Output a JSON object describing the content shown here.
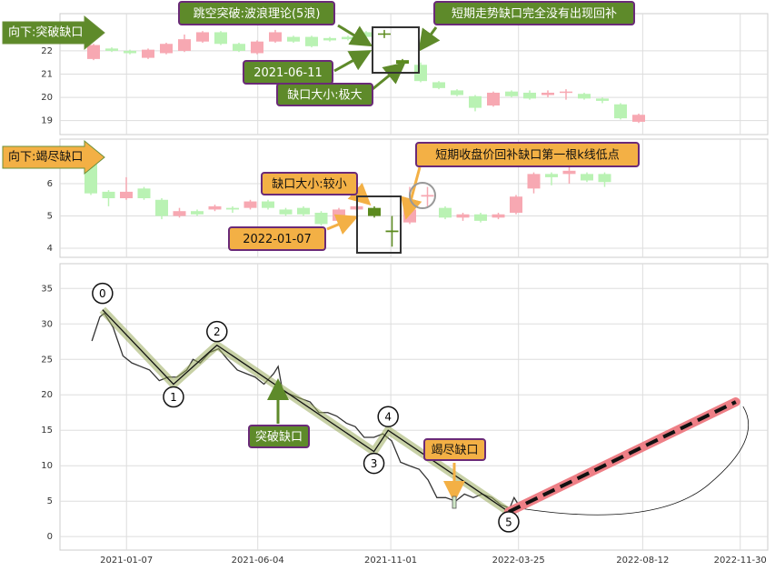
{
  "chart_data": [
    {
      "type": "candlestick",
      "up_color": "#f7a8b2",
      "down_color": "#b9f2b3",
      "highlight": [
        16,
        17
      ],
      "highlight_color": "#5b8a1e",
      "open": [
        21.65,
        22.1,
        22.0,
        21.7,
        21.9,
        22.0,
        22.4,
        22.8,
        22.3,
        21.9,
        22.4,
        22.6,
        22.6,
        22.55,
        22.6,
        22.8,
        22.75,
        21.6,
        21.4,
        20.65,
        20.3,
        20.05,
        19.65,
        20.25,
        20.2,
        20.1,
        20.2,
        20.15,
        19.95,
        19.7,
        18.95
      ],
      "high": [
        22.3,
        22.15,
        22.05,
        22.1,
        22.35,
        22.7,
        22.85,
        22.85,
        22.35,
        22.45,
        22.9,
        22.65,
        22.65,
        22.6,
        22.65,
        22.85,
        22.9,
        21.65,
        21.5,
        20.7,
        20.35,
        20.1,
        20.25,
        20.3,
        20.3,
        20.3,
        20.35,
        20.2,
        20.0,
        19.75,
        19.3
      ],
      "low": [
        21.6,
        21.95,
        21.85,
        21.65,
        21.85,
        21.95,
        22.35,
        22.25,
        21.95,
        21.85,
        22.35,
        22.35,
        22.15,
        22.4,
        22.45,
        22.55,
        22.55,
        21.4,
        20.65,
        20.35,
        20.05,
        19.4,
        19.6,
        20.0,
        19.9,
        20.0,
        19.9,
        19.9,
        19.75,
        19.05,
        18.9
      ],
      "close": [
        22.25,
        22.0,
        21.9,
        22.05,
        22.3,
        22.5,
        22.8,
        22.3,
        22.0,
        22.4,
        22.8,
        22.4,
        22.2,
        22.45,
        22.5,
        22.6,
        22.7,
        21.45,
        20.7,
        20.4,
        20.1,
        19.55,
        20.2,
        20.05,
        19.95,
        20.2,
        20.25,
        19.95,
        19.85,
        19.1,
        19.25
      ],
      "ylim": [
        18.4,
        23.6
      ],
      "yticks": [
        19,
        20,
        21,
        22
      ],
      "grid": true,
      "annotations": [
        "向下:突破缺口",
        "跳空突破:波浪理论(5浪)",
        "短期走势缺口完全没有出现回补",
        "2021-06-11",
        "缺口大小:极大"
      ]
    },
    {
      "type": "candlestick",
      "up_color": "#f7a8b2",
      "down_color": "#b9f2b3",
      "highlight": [
        16,
        17
      ],
      "highlight_color": "#5b8a1e",
      "open": [
        6.6,
        5.75,
        5.55,
        5.85,
        5.5,
        5.0,
        5.15,
        5.2,
        5.25,
        5.25,
        5.45,
        5.2,
        5.25,
        5.1,
        4.85,
        5.2,
        5.25,
        4.55,
        4.8,
        5.6,
        5.25,
        4.95,
        5.05,
        4.95,
        5.1,
        5.85,
        6.3,
        6.3,
        6.3,
        6.3
      ],
      "high": [
        6.65,
        5.8,
        6.2,
        5.9,
        5.55,
        5.25,
        5.2,
        5.35,
        5.3,
        5.5,
        5.5,
        5.25,
        5.3,
        5.15,
        5.25,
        5.35,
        5.3,
        5.0,
        5.9,
        5.9,
        5.3,
        5.1,
        5.1,
        5.1,
        5.65,
        6.35,
        6.35,
        6.6,
        6.35,
        6.35
      ],
      "low": [
        5.65,
        5.3,
        5.5,
        5.5,
        4.9,
        4.95,
        5.0,
        5.15,
        5.1,
        5.2,
        5.2,
        5.0,
        5.0,
        4.7,
        4.8,
        5.15,
        4.95,
        4.05,
        4.75,
        5.3,
        4.9,
        4.85,
        4.8,
        4.9,
        5.05,
        5.7,
        5.95,
        6.0,
        6.05,
        5.9
      ],
      "close": [
        5.7,
        5.55,
        5.75,
        5.55,
        5.0,
        5.15,
        5.05,
        5.3,
        5.2,
        5.45,
        5.25,
        5.05,
        5.05,
        4.75,
        5.2,
        5.3,
        5.0,
        4.5,
        5.2,
        5.65,
        4.95,
        5.05,
        4.85,
        5.05,
        5.6,
        6.3,
        6.2,
        6.4,
        6.1,
        6.05
      ],
      "ylim": [
        3.72,
        7.38
      ],
      "yticks": [
        4,
        5,
        6
      ],
      "grid": true,
      "annotations": [
        "向下:竭尽缺口",
        "短期收盘价回补缺口第一根k线低点",
        "缺口大小:较小",
        "2022-01-07"
      ]
    },
    {
      "type": "line",
      "x": [
        "2020-11-29",
        "2020-12-08",
        "2020-12-13",
        "2020-12-23",
        "2021-01-03",
        "2021-01-13",
        "2021-01-23",
        "2021-02-02",
        "2021-02-13",
        "2021-02-23",
        "2021-03-05",
        "2021-03-16",
        "2021-03-23",
        "2021-03-31",
        "2021-04-11",
        "2021-04-21",
        "2021-05-01",
        "2021-05-12",
        "2021-05-22",
        "2021-06-01",
        "2021-06-11",
        "2021-06-22",
        "2021-06-27",
        "2021-07-02",
        "2021-07-12",
        "2021-07-22",
        "2021-08-02",
        "2021-08-12",
        "2021-08-22",
        "2021-09-01",
        "2021-09-12",
        "2021-09-22",
        "2021-10-02",
        "2021-10-13",
        "2021-10-23",
        "2021-11-02",
        "2021-11-12",
        "2021-11-22",
        "2021-12-03",
        "2021-12-13",
        "2021-12-23",
        "2022-01-02",
        "2022-01-13",
        "2022-01-23",
        "2022-02-02",
        "2022-02-12",
        "2022-02-23",
        "2022-03-05",
        "2022-03-15",
        "2022-03-20",
        "2022-03-25"
      ],
      "series": [
        {
          "color": "#333333",
          "values": [
            27.6,
            31,
            31.5,
            29.5,
            25.5,
            24.5,
            24,
            23.5,
            22,
            22.5,
            22.5,
            23.5,
            25,
            24.5,
            26,
            26.5,
            25,
            23.5,
            23,
            22.5,
            21.5,
            23,
            24,
            20.5,
            20,
            19.5,
            19,
            17.5,
            17.5,
            17,
            16,
            15.5,
            14,
            14,
            14.5,
            13.5,
            10.5,
            10,
            9.5,
            8,
            5.5,
            5.5,
            5,
            6,
            5.5,
            6,
            5.5,
            4.5,
            4,
            5.5,
            4.5
          ]
        }
      ],
      "waves": {
        "labels": [
          "0",
          "1",
          "2",
          "3",
          "4",
          "5"
        ],
        "x": [
          "2020-12-11",
          "2021-03-01",
          "2021-04-19",
          "2021-10-13",
          "2021-10-29",
          "2022-03-14"
        ],
        "values": [
          32,
          21.5,
          27,
          12,
          15,
          3.5
        ]
      },
      "projection": {
        "x": [
          "2022-03-14",
          "2022-11-25"
        ],
        "values": [
          3.5,
          19
        ]
      },
      "xlim": [
        "2020-10-24",
        "2022-12-31"
      ],
      "xticks": [
        "2021-01-07",
        "2021-06-04",
        "2021-11-01",
        "2022-03-25",
        "2022-08-12",
        "2022-11-30"
      ],
      "ylim": [
        -1.9,
        38.5
      ],
      "yticks": [
        0,
        5,
        10,
        15,
        20,
        25,
        30,
        35
      ],
      "grid": true,
      "annotations": [
        "突破缺口",
        "竭尽缺口"
      ]
    }
  ]
}
